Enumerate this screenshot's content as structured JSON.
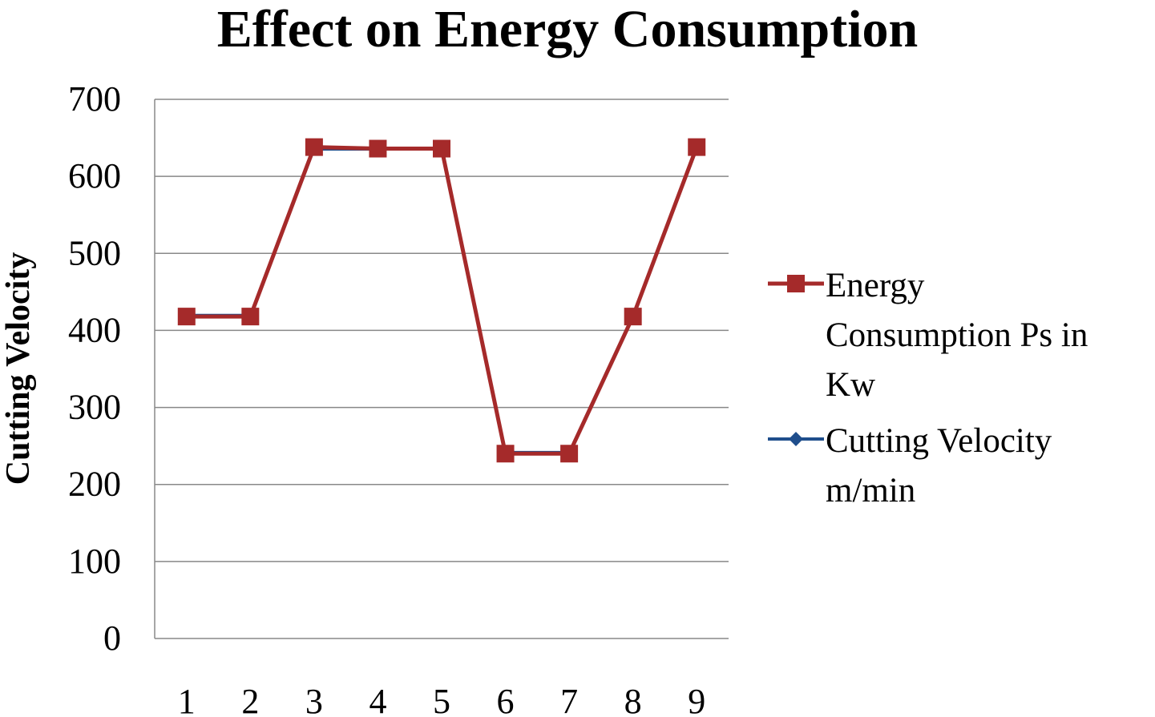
{
  "chart_data": {
    "type": "line",
    "title": "Effect on Energy Consumption",
    "xlabel": "",
    "ylabel": "Cutting Velocity",
    "categories": [
      "1",
      "2",
      "3",
      "4",
      "5",
      "6",
      "7",
      "8",
      "9"
    ],
    "ylim": [
      0,
      700
    ],
    "yticks": [
      "0",
      "100",
      "200",
      "300",
      "400",
      "500",
      "600",
      "700"
    ],
    "grid": true,
    "legend_position": "right",
    "series": [
      {
        "name_lines": [
          "Energy",
          "Consumption Ps  in",
          "Kw"
        ],
        "values": [
          418,
          418,
          638,
          636,
          636,
          240,
          240,
          418,
          638
        ],
        "color": "#a52a2a",
        "marker": "square"
      },
      {
        "name_lines": [
          "Cutting Velocity",
          "m/min"
        ],
        "values": [
          420,
          420,
          635,
          635,
          635,
          242,
          242,
          420,
          635
        ],
        "color": "#1f4e8c",
        "marker": "diamond"
      }
    ]
  }
}
